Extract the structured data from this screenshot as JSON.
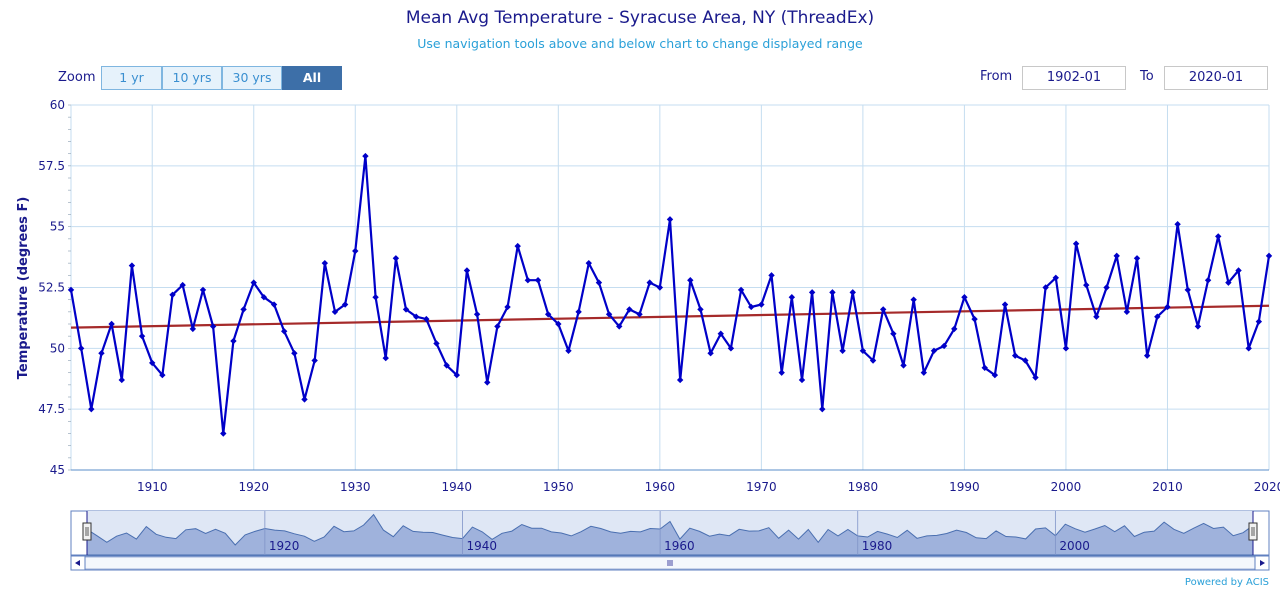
{
  "header": {
    "title": "Mean Avg Temperature - Syracuse Area, NY (ThreadEx)",
    "subtitle": "Use navigation tools above and below chart to change displayed range"
  },
  "zoom": {
    "label": "Zoom",
    "buttons": [
      "1 yr",
      "10 yrs",
      "30 yrs",
      "All"
    ],
    "active": "All"
  },
  "range": {
    "from_label": "From",
    "from_value": "1902-01",
    "to_label": "To",
    "to_value": "2020-01"
  },
  "footer": {
    "powered_by": "Powered by ACIS"
  },
  "colors": {
    "series": "#0000c8",
    "trend": "#a52a2a",
    "grid": "#c5ddf0",
    "navigator_fill": "#b9c8e6"
  },
  "chart_data": {
    "type": "line",
    "title": "Mean Avg Temperature - Syracuse Area, NY (ThreadEx)",
    "xlabel": "",
    "ylabel": "Temperature (degrees F)",
    "xlim": [
      1902,
      2020
    ],
    "ylim": [
      45,
      60
    ],
    "yticks": [
      45,
      47.5,
      50,
      52.5,
      55,
      57.5,
      60
    ],
    "xticks": [
      1910,
      1920,
      1930,
      1940,
      1950,
      1960,
      1970,
      1980,
      1990,
      2000,
      2010,
      2020
    ],
    "grid": true,
    "x": [
      1902,
      1903,
      1904,
      1905,
      1906,
      1907,
      1908,
      1909,
      1910,
      1911,
      1912,
      1913,
      1914,
      1915,
      1916,
      1917,
      1918,
      1919,
      1920,
      1921,
      1922,
      1923,
      1924,
      1925,
      1926,
      1927,
      1928,
      1929,
      1930,
      1931,
      1932,
      1933,
      1934,
      1935,
      1936,
      1937,
      1938,
      1939,
      1940,
      1941,
      1942,
      1943,
      1944,
      1945,
      1946,
      1947,
      1948,
      1949,
      1950,
      1951,
      1952,
      1953,
      1954,
      1955,
      1956,
      1957,
      1958,
      1959,
      1960,
      1961,
      1962,
      1963,
      1964,
      1965,
      1966,
      1967,
      1968,
      1969,
      1970,
      1971,
      1972,
      1973,
      1974,
      1975,
      1976,
      1977,
      1978,
      1979,
      1980,
      1981,
      1982,
      1983,
      1984,
      1985,
      1986,
      1987,
      1988,
      1989,
      1990,
      1991,
      1992,
      1993,
      1994,
      1995,
      1996,
      1997,
      1998,
      1999,
      2000,
      2001,
      2002,
      2003,
      2004,
      2005,
      2006,
      2007,
      2008,
      2009,
      2010,
      2011,
      2012,
      2013,
      2014,
      2015,
      2016,
      2017,
      2018,
      2019,
      2020
    ],
    "series": [
      {
        "name": "",
        "values": [
          52.4,
          50.0,
          47.5,
          49.8,
          51.0,
          48.7,
          53.4,
          50.5,
          49.4,
          48.9,
          52.2,
          52.6,
          50.8,
          52.4,
          50.9,
          46.5,
          50.3,
          51.6,
          52.7,
          52.1,
          51.8,
          50.7,
          49.8,
          47.9,
          49.5,
          53.5,
          51.5,
          51.8,
          54.0,
          57.9,
          52.1,
          49.6,
          53.7,
          51.6,
          51.3,
          51.2,
          50.2,
          49.3,
          48.9,
          53.2,
          51.4,
          48.6,
          50.9,
          51.7,
          54.2,
          52.8,
          52.8,
          51.4,
          51.0,
          49.9,
          51.5,
          53.5,
          52.7,
          51.4,
          50.9,
          51.6,
          51.4,
          52.7,
          52.5,
          55.3,
          48.7,
          52.8,
          51.6,
          49.8,
          50.6,
          50.0,
          52.4,
          51.7,
          51.8,
          53.0,
          49.0,
          52.1,
          48.7,
          52.3,
          47.5,
          52.3,
          49.9,
          52.3,
          49.9,
          49.5,
          51.6,
          50.6,
          49.3,
          52.0,
          49.0,
          49.9,
          50.1,
          50.8,
          52.1,
          51.2,
          49.2,
          48.9,
          51.8,
          49.7,
          49.5,
          48.8,
          52.5,
          52.9,
          50.0,
          54.3,
          52.6,
          51.3,
          52.5,
          53.8,
          51.5,
          53.7,
          49.7,
          51.3,
          51.7,
          55.1,
          52.4,
          50.9,
          52.8,
          54.6,
          52.7,
          53.2,
          50.0,
          51.1,
          53.8
        ]
      },
      {
        "name": "",
        "kind": "trend",
        "values_start_end": [
          50.85,
          51.75
        ]
      }
    ]
  },
  "navigator": {
    "labels": [
      "1920",
      "1940",
      "1960",
      "1980",
      "2000"
    ]
  }
}
